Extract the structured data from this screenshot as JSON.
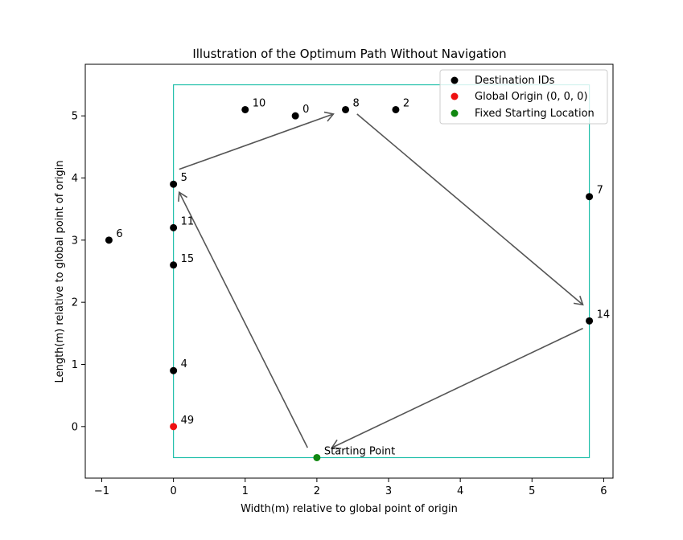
{
  "chart_data": {
    "type": "scatter",
    "title": "Illustration of the Optimum Path Without Navigation",
    "xlabel": "Width(m) relative to global point of origin",
    "ylabel": "Length(m) relative to global point of origin",
    "xlim": [
      -1.23,
      6.13
    ],
    "ylim": [
      -0.83,
      5.83
    ],
    "xticks": [
      -1,
      0,
      1,
      2,
      3,
      4,
      5,
      6
    ],
    "yticks": [
      0,
      1,
      2,
      3,
      4,
      5
    ],
    "colors": {
      "destination": "#000000",
      "origin": "#ee1111",
      "start": "#118811",
      "boundary": "#1fbfaa",
      "arrow": "#555555"
    },
    "legend": {
      "position": "top-right",
      "entries": [
        {
          "label": "Destination IDs",
          "series": "destination"
        },
        {
          "label": "Global Origin (0, 0, 0)",
          "series": "origin"
        },
        {
          "label": "Fixed Starting Location",
          "series": "start"
        }
      ]
    },
    "destinations": [
      {
        "id": "10",
        "x": 1.0,
        "y": 5.1
      },
      {
        "id": "0",
        "x": 1.7,
        "y": 5.0
      },
      {
        "id": "8",
        "x": 2.4,
        "y": 5.1
      },
      {
        "id": "2",
        "x": 3.1,
        "y": 5.1
      },
      {
        "id": "5",
        "x": 0.0,
        "y": 3.9
      },
      {
        "id": "7",
        "x": 5.8,
        "y": 3.7
      },
      {
        "id": "6",
        "x": -0.9,
        "y": 3.0
      },
      {
        "id": "11",
        "x": 0.0,
        "y": 3.2
      },
      {
        "id": "15",
        "x": 0.0,
        "y": 2.6
      },
      {
        "id": "14",
        "x": 5.8,
        "y": 1.7
      },
      {
        "id": "4",
        "x": 0.0,
        "y": 0.9
      }
    ],
    "origin": {
      "id": "49",
      "x": 0.0,
      "y": 0.0
    },
    "start": {
      "label": "Starting Point",
      "x": 2.0,
      "y": -0.5
    },
    "boundary": {
      "x0": 0.0,
      "y0": -0.5,
      "x1": 5.8,
      "y1": 5.5
    },
    "path": [
      {
        "from": [
          1.87,
          -0.34
        ],
        "to": [
          0.08,
          3.77
        ]
      },
      {
        "from": [
          0.08,
          4.14
        ],
        "to": [
          2.23,
          5.03
        ]
      },
      {
        "from": [
          2.56,
          5.03
        ],
        "to": [
          5.71,
          1.96
        ]
      },
      {
        "from": [
          5.71,
          1.58
        ],
        "to": [
          2.21,
          -0.34
        ]
      }
    ]
  }
}
